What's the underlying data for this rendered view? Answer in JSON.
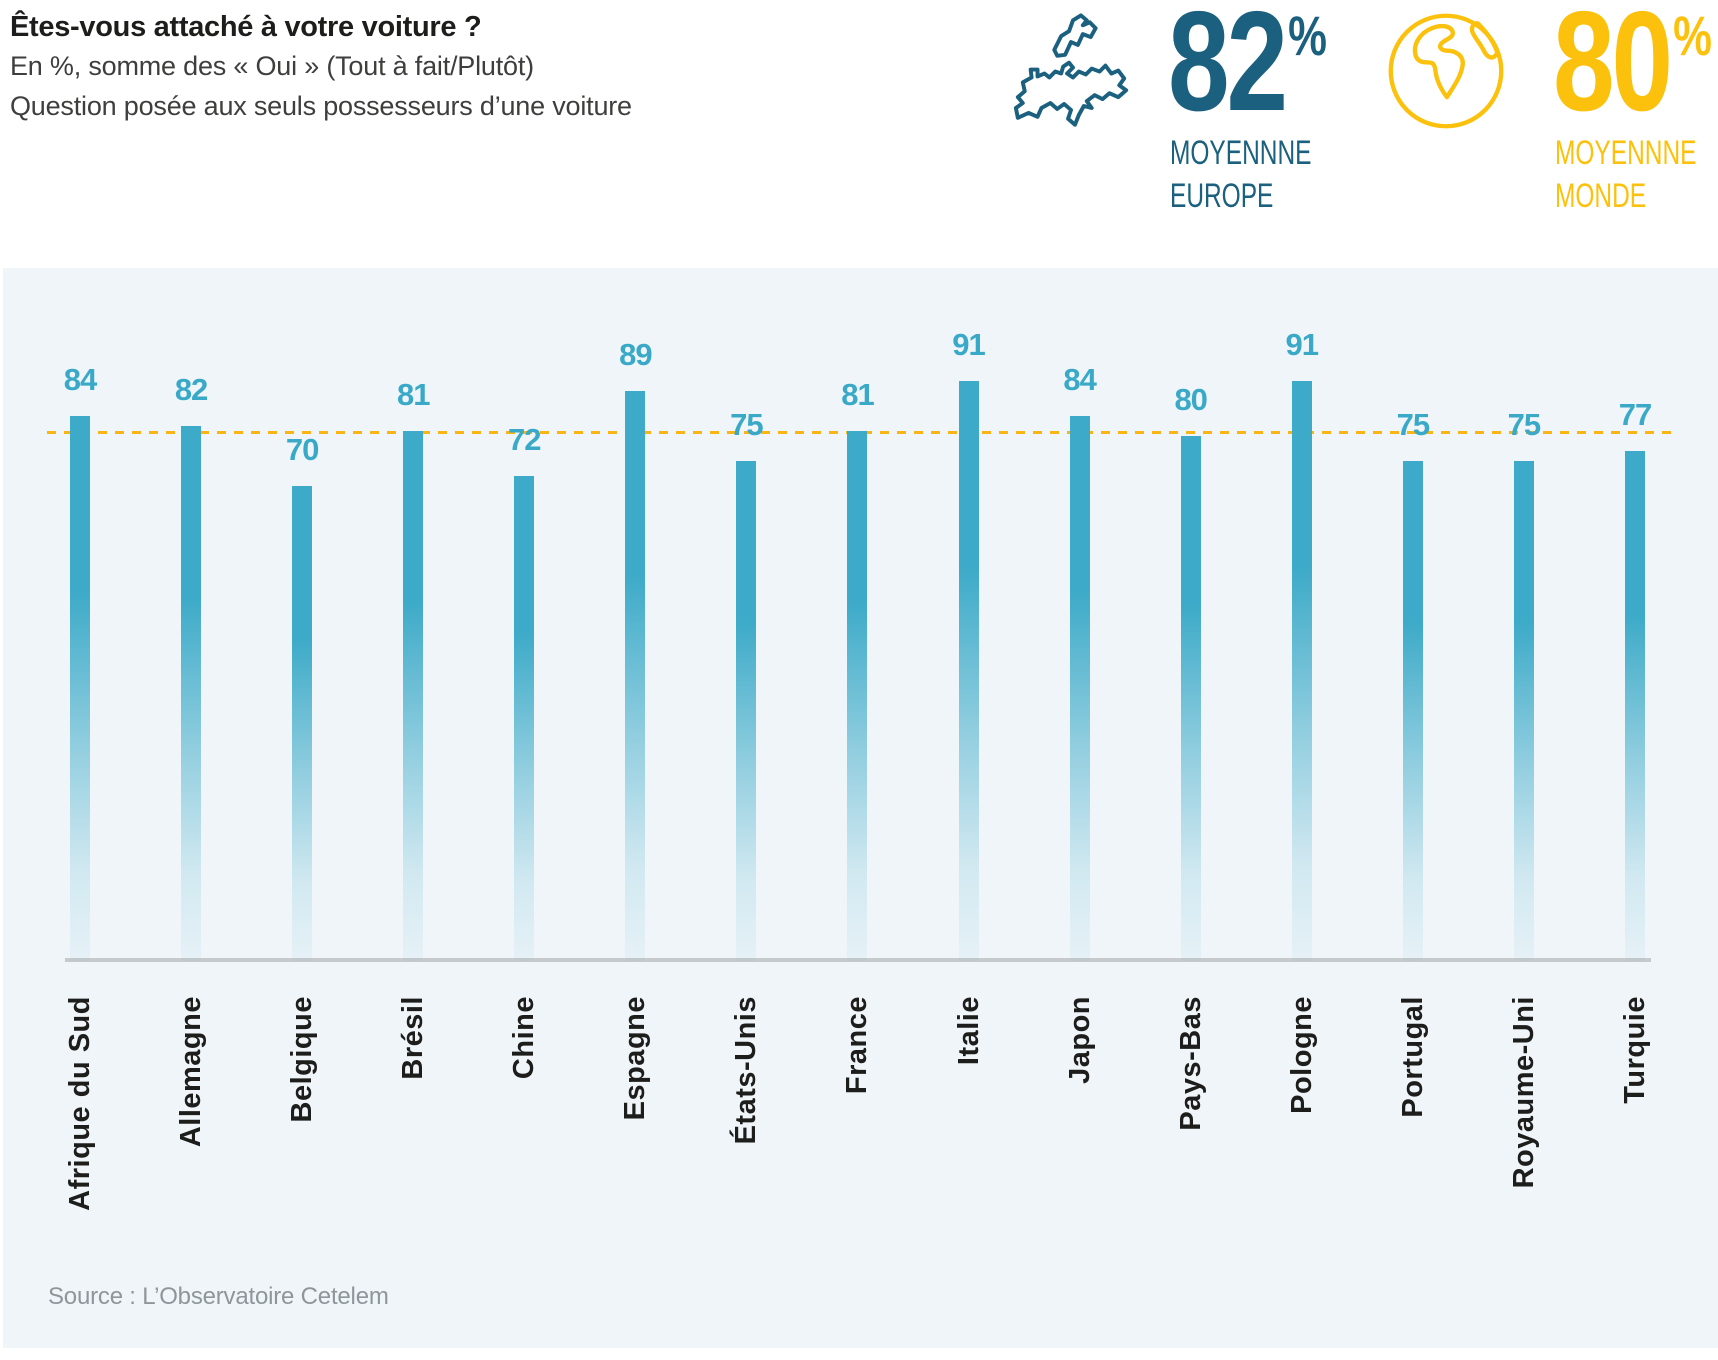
{
  "header": {
    "title": "Êtes-vous attaché à votre voiture ?",
    "subtitle": "En %, somme des « Oui » (Tout à fait/Plutôt)",
    "note": "Question posée aux seuls possesseurs d’une voiture"
  },
  "stats": {
    "europe": {
      "icon": "europe-map-icon",
      "value": "82",
      "unit": "%",
      "label_line1": "MOYENNNE",
      "label_line2": "EUROPE",
      "color": "#1b617f"
    },
    "monde": {
      "icon": "globe-icon",
      "value": "80",
      "unit": "%",
      "label_line1": "MOYENNNE",
      "label_line2": "MONDE",
      "color": "#fcc10d"
    }
  },
  "chart_data": {
    "type": "bar",
    "title": "Êtes-vous attaché à votre voiture ?",
    "subtitle": "En %, somme des « Oui » (Tout à fait/Plutôt)",
    "categories": [
      "Afrique du Sud",
      "Allemagne",
      "Belgique",
      "Brésil",
      "Chine",
      "Espagne",
      "États-Unis",
      "France",
      "Italie",
      "Japon",
      "Pays-Bas",
      "Pologne",
      "Portugal",
      "Royaume-Uni",
      "Turquie"
    ],
    "values": [
      84,
      82,
      70,
      81,
      72,
      89,
      75,
      81,
      91,
      84,
      80,
      91,
      75,
      75,
      77
    ],
    "unit": "%",
    "bar_color": "#3caac8",
    "value_label_color": "#3aa9c8",
    "reference_line": {
      "label": "Moyenne monde",
      "value": 80,
      "color": "#f9b515",
      "style": "dashed"
    },
    "averages": {
      "europe": 82,
      "monde": 80
    },
    "yaxis_visible": false,
    "grid": false,
    "legend": "none",
    "xlabel_rotation": -90
  },
  "source": "Source : L’Observatoire Cetelem"
}
